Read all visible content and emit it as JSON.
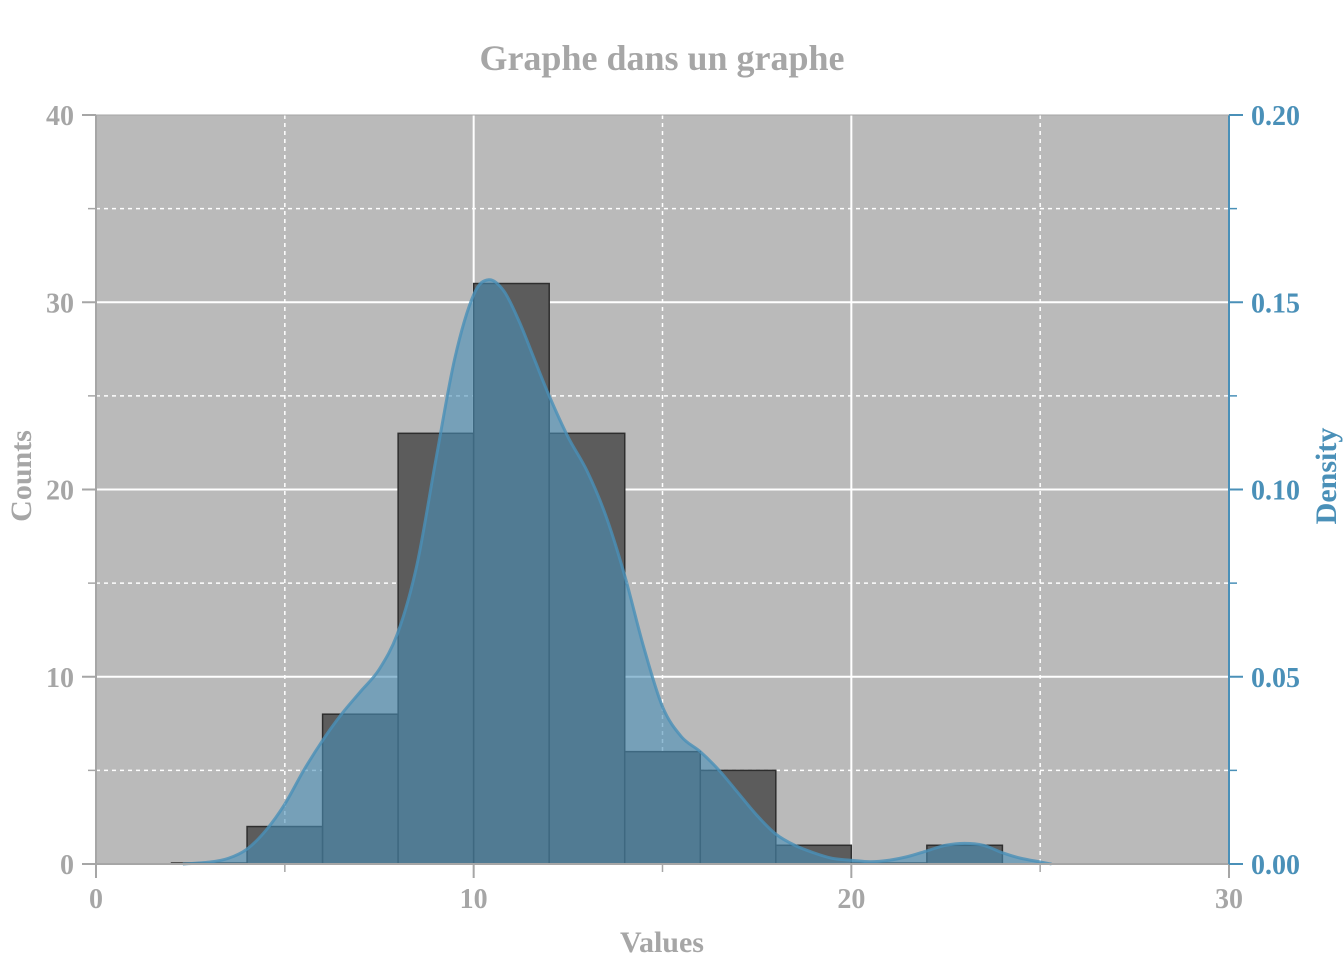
{
  "chart_data": {
    "type": "bar",
    "title": "Graphe dans un graphe",
    "xlabel": "Values",
    "ylabel": "Counts",
    "y2label": "Density",
    "xlim": [
      0,
      30
    ],
    "ylim": [
      0,
      40
    ],
    "y2lim": [
      0,
      0.2
    ],
    "x_ticks": [
      "0",
      "10",
      "20",
      "30"
    ],
    "y_ticks": [
      "0",
      "10",
      "20",
      "30",
      "40"
    ],
    "y2_ticks": [
      "0.00",
      "0.05",
      "0.10",
      "0.15",
      "0.20"
    ],
    "grid": true,
    "colors": {
      "background": "#bababa",
      "histogram": "#5c5c5c",
      "density": "#4a90b8",
      "axis_text": "#a6a6a6"
    },
    "histogram": {
      "bins": [
        {
          "x0": 2,
          "x1": 4,
          "count": 0
        },
        {
          "x0": 4,
          "x1": 6,
          "count": 2
        },
        {
          "x0": 6,
          "x1": 8,
          "count": 8
        },
        {
          "x0": 8,
          "x1": 10,
          "count": 23
        },
        {
          "x0": 10,
          "x1": 12,
          "count": 31
        },
        {
          "x0": 12,
          "x1": 14,
          "count": 23
        },
        {
          "x0": 14,
          "x1": 16,
          "count": 6
        },
        {
          "x0": 16,
          "x1": 18,
          "count": 5
        },
        {
          "x0": 18,
          "x1": 20,
          "count": 1
        },
        {
          "x0": 20,
          "x1": 22,
          "count": 0
        },
        {
          "x0": 22,
          "x1": 24,
          "count": 1
        }
      ]
    },
    "density": {
      "x": [
        2.3,
        3,
        3.5,
        4,
        4.5,
        5,
        5.5,
        6,
        6.5,
        7,
        7.5,
        8,
        8.5,
        9,
        9.5,
        10,
        10.4,
        10.8,
        11.2,
        11.6,
        12,
        12.5,
        13,
        13.5,
        14,
        14.5,
        15,
        15.5,
        16,
        16.5,
        17,
        17.5,
        18,
        18.5,
        19,
        19.5,
        20,
        20.5,
        21,
        21.5,
        22,
        22.5,
        23,
        23.5,
        24,
        24.5,
        25.3
      ],
      "y": [
        0.0,
        0.0005,
        0.0015,
        0.004,
        0.009,
        0.016,
        0.025,
        0.033,
        0.04,
        0.046,
        0.052,
        0.062,
        0.08,
        0.108,
        0.135,
        0.152,
        0.156,
        0.153,
        0.145,
        0.135,
        0.125,
        0.114,
        0.105,
        0.093,
        0.077,
        0.058,
        0.042,
        0.034,
        0.03,
        0.025,
        0.019,
        0.013,
        0.008,
        0.005,
        0.003,
        0.0015,
        0.001,
        0.0006,
        0.001,
        0.002,
        0.0035,
        0.005,
        0.0055,
        0.005,
        0.003,
        0.0015,
        0.0
      ]
    }
  }
}
